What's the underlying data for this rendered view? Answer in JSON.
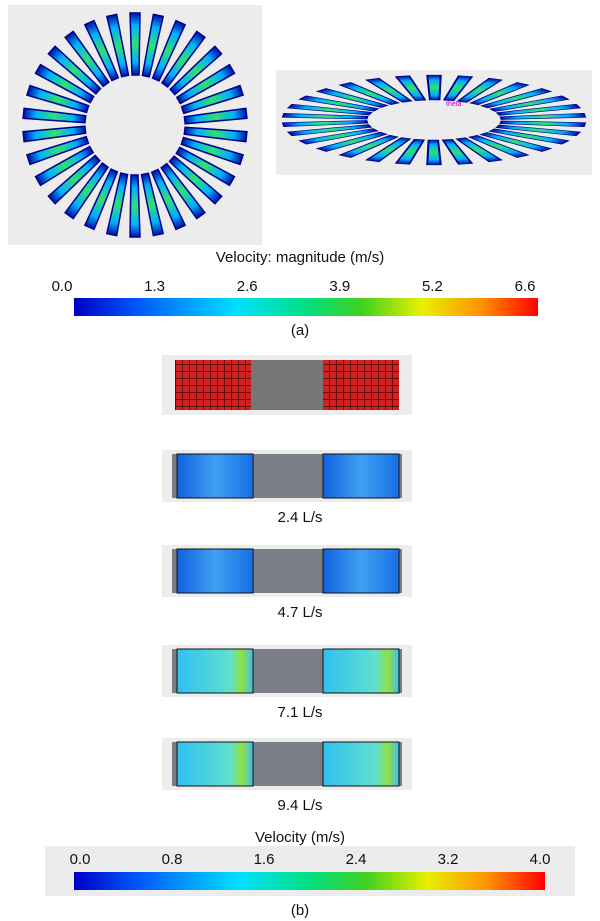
{
  "panel_a": {
    "annotation": "theta",
    "colorbar": {
      "title": "Velocity: magnitude (m/s)",
      "ticks": [
        "0.0",
        "1.3",
        "2.6",
        "3.9",
        "5.2",
        "6.6"
      ]
    },
    "label": "(a)"
  },
  "panel_b": {
    "images": [
      {
        "label": "2.4 L/s"
      },
      {
        "label": "4.7 L/s"
      },
      {
        "label": "7.1 L/s"
      },
      {
        "label": "9.4 L/s"
      }
    ],
    "colorbar": {
      "title": "Velocity (m/s)",
      "ticks": [
        "0.0",
        "0.8",
        "1.6",
        "2.4",
        "3.2",
        "4.0"
      ]
    },
    "label": "(b)"
  }
}
